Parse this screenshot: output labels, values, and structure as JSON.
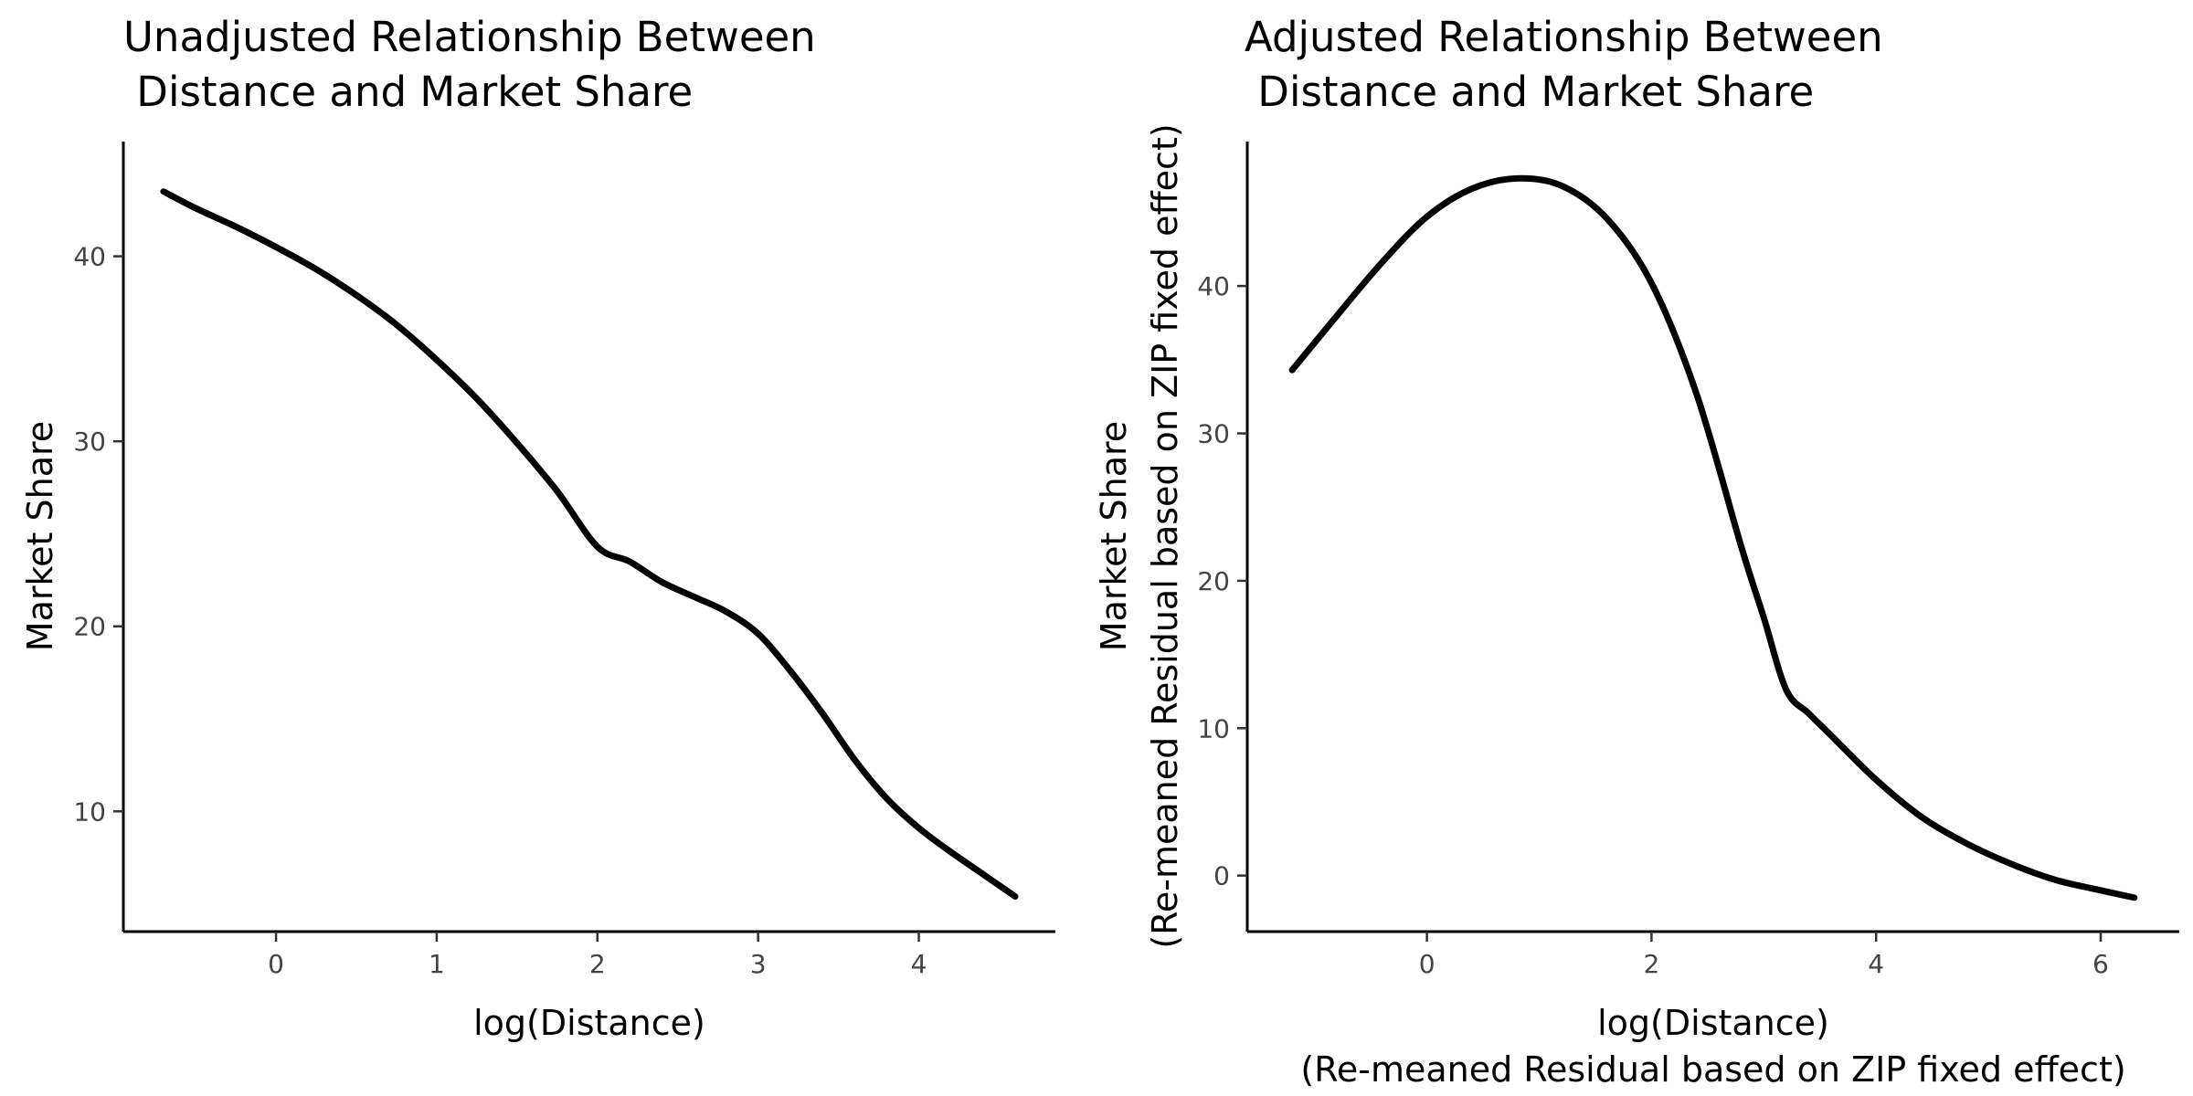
{
  "chart_data": [
    {
      "type": "line",
      "title_lines": [
        "Unadjusted Relationship Between",
        " Distance and Market Share"
      ],
      "xlabel_lines": [
        "log(Distance)"
      ],
      "ylabel_lines": [
        "Market Share"
      ],
      "xlim": [
        -0.95,
        4.85
      ],
      "ylim": [
        3.5,
        46.2
      ],
      "xticks": [
        0,
        1,
        2,
        3,
        4
      ],
      "yticks": [
        10,
        20,
        30,
        40
      ],
      "grid": false,
      "legend": "none",
      "series": [
        {
          "name": "Market Share",
          "color": "#000000",
          "x": [
            -0.7,
            -0.5,
            -0.25,
            0,
            0.25,
            0.5,
            0.75,
            1.0,
            1.25,
            1.5,
            1.75,
            2.0,
            2.2,
            2.4,
            2.6,
            2.8,
            3.0,
            3.2,
            3.4,
            3.6,
            3.8,
            4.0,
            4.2,
            4.4,
            4.6
          ],
          "y": [
            43.5,
            42.6,
            41.6,
            40.5,
            39.3,
            37.9,
            36.3,
            34.4,
            32.3,
            29.9,
            27.3,
            24.3,
            23.5,
            22.4,
            21.6,
            20.8,
            19.6,
            17.6,
            15.3,
            12.8,
            10.7,
            9.1,
            7.8,
            6.6,
            5.4
          ]
        }
      ]
    },
    {
      "type": "line",
      "title_lines": [
        "Adjusted Relationship Between",
        " Distance and Market Share"
      ],
      "xlabel_lines": [
        "log(Distance)",
        "(Re-meaned Residual based on ZIP fixed effect)"
      ],
      "ylabel_lines": [
        "Market Share",
        "(Re-meaned Residual based on ZIP fixed effect)"
      ],
      "xlim": [
        -1.6,
        6.7
      ],
      "ylim": [
        -3.8,
        49.8
      ],
      "xticks": [
        0,
        2,
        4,
        6
      ],
      "yticks": [
        0,
        10,
        20,
        30,
        40
      ],
      "grid": false,
      "legend": "none",
      "series": [
        {
          "name": "Market Share",
          "color": "#000000",
          "x": [
            -1.2,
            -0.8,
            -0.4,
            0,
            0.4,
            0.8,
            1.2,
            1.6,
            2.0,
            2.4,
            2.8,
            3.0,
            3.2,
            3.4,
            3.6,
            4.0,
            4.4,
            4.8,
            5.2,
            5.6,
            6.0,
            6.3
          ],
          "y": [
            34.3,
            38.0,
            41.6,
            44.7,
            46.6,
            47.3,
            46.8,
            44.6,
            40.2,
            32.7,
            22.3,
            17.5,
            12.6,
            11.0,
            9.5,
            6.5,
            4.0,
            2.2,
            0.8,
            -0.3,
            -1.0,
            -1.5
          ]
        }
      ]
    }
  ]
}
